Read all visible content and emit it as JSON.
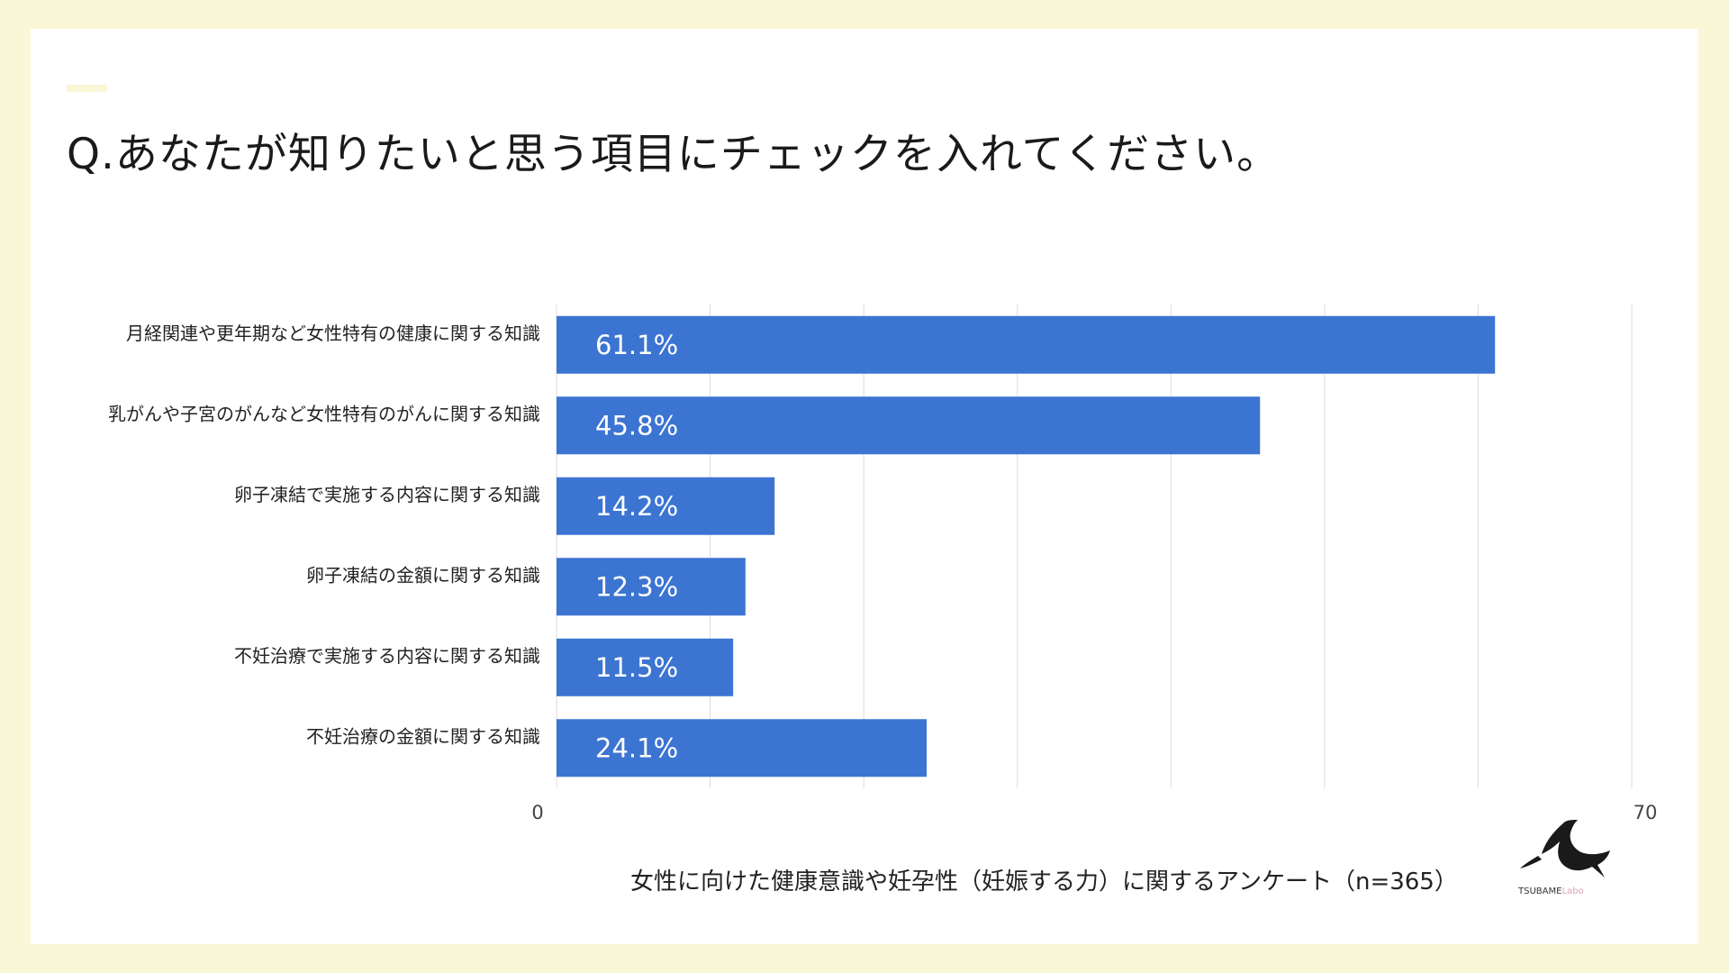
{
  "title": "Q.あなたが知りたいと思う項目にチェックを入れてください。",
  "footer": "女性に向けた健康意識や妊孕性（妊娠する力）に関するアンケート（n=365）",
  "logo": {
    "name": "TSUBAME",
    "suffix": "Labo"
  },
  "colors": {
    "bar": "#3c74d2",
    "grid": "#dddddd",
    "frame": "#faf6d8"
  },
  "chart_data": {
    "type": "bar",
    "orientation": "horizontal",
    "title": "Q.あなたが知りたいと思う項目にチェックを入れてください。",
    "categories": [
      "月経関連や更年期など女性特有の健康に関する知識",
      "乳がんや子宮のがんなど女性特有のがんに関する知識",
      "卵子凍結で実施する内容に関する知識",
      "卵子凍結の金額に関する知識",
      "不妊治療で実施する内容に関する知識",
      "不妊治療の金額に関する知識"
    ],
    "values": [
      61.1,
      45.8,
      14.2,
      12.3,
      11.5,
      24.1
    ],
    "value_labels": [
      "61.1%",
      "45.8%",
      "14.2%",
      "12.3%",
      "11.5%",
      "24.1%"
    ],
    "xlim": [
      0,
      70
    ],
    "tick_labels": [
      "0",
      "70"
    ],
    "gridlines": [
      0,
      10,
      20,
      30,
      40,
      50,
      60,
      70
    ],
    "grid": true,
    "xlabel": "",
    "ylabel": ""
  }
}
